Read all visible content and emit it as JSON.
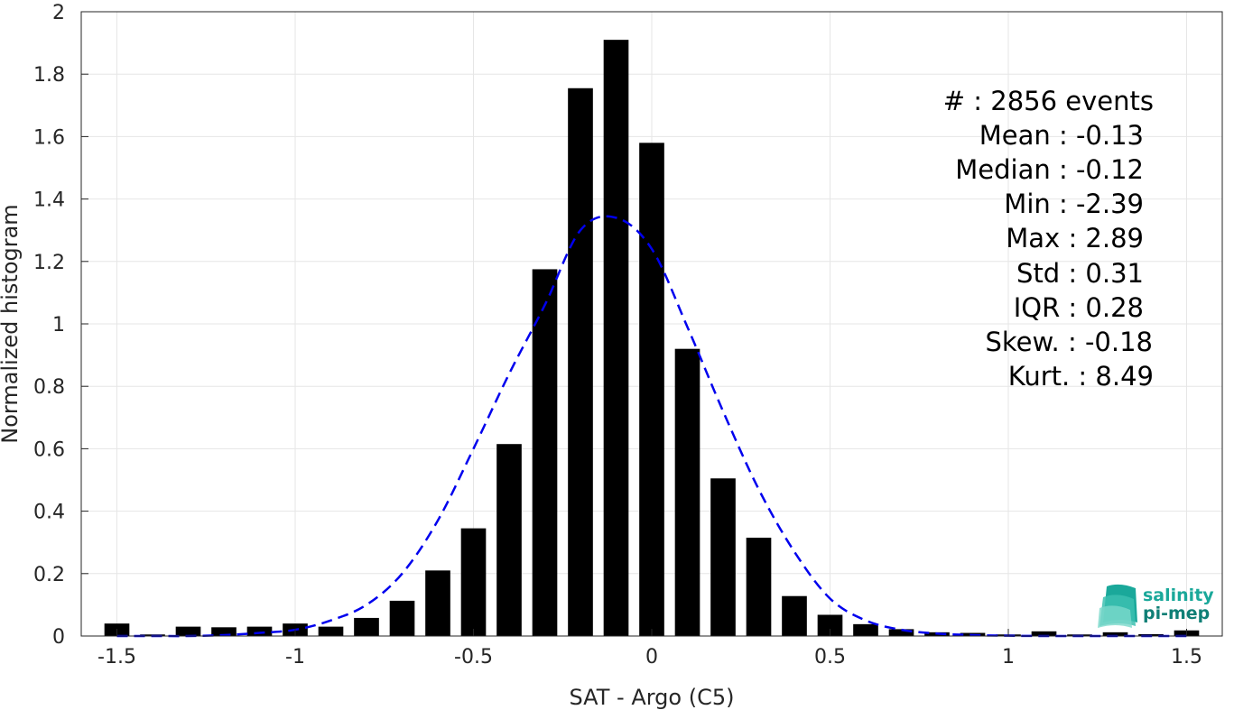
{
  "chart_data": {
    "type": "bar",
    "xlabel": "SAT - Argo (C5)",
    "ylabel": "Normalized histogram",
    "xlim": [
      -1.6,
      1.6
    ],
    "ylim": [
      0,
      2
    ],
    "xticks": [
      -1.5,
      -1,
      -0.5,
      0,
      0.5,
      1,
      1.5
    ],
    "xtick_labels": [
      "-1.5",
      "-1",
      "-0.5",
      "0",
      "0.5",
      "1",
      "1.5"
    ],
    "yticks": [
      0,
      0.2,
      0.4,
      0.6,
      0.8,
      1,
      1.2,
      1.4,
      1.6,
      1.8,
      2
    ],
    "ytick_labels": [
      "0",
      "0.2",
      "0.4",
      "0.6",
      "0.8",
      "1",
      "1.2",
      "1.4",
      "1.6",
      "1.8",
      "2"
    ],
    "grid": true,
    "bar_width": 0.07,
    "bar_color": "#000000",
    "bins": [
      -1.5,
      -1.4,
      -1.3,
      -1.2,
      -1.1,
      -1.0,
      -0.9,
      -0.8,
      -0.7,
      -0.6,
      -0.5,
      -0.4,
      -0.3,
      -0.2,
      -0.1,
      0.0,
      0.1,
      0.2,
      0.3,
      0.4,
      0.5,
      0.6,
      0.7,
      0.8,
      0.9,
      1.0,
      1.1,
      1.2,
      1.3,
      1.4,
      1.5
    ],
    "values": [
      0.04,
      0.005,
      0.03,
      0.028,
      0.03,
      0.04,
      0.03,
      0.058,
      0.113,
      0.21,
      0.345,
      0.615,
      1.175,
      1.755,
      1.91,
      1.58,
      0.92,
      0.505,
      0.315,
      0.128,
      0.068,
      0.038,
      0.022,
      0.012,
      0.01,
      0.005,
      0.015,
      0.005,
      0.012,
      0.006,
      0.018
    ],
    "fit_curve": {
      "style": "dashed",
      "color": "#0000ee",
      "x": [
        -1.5,
        -1.4,
        -1.3,
        -1.2,
        -1.1,
        -1.0,
        -0.9,
        -0.8,
        -0.7,
        -0.6,
        -0.5,
        -0.4,
        -0.3,
        -0.2,
        -0.1,
        0.0,
        0.1,
        0.2,
        0.3,
        0.4,
        0.5,
        0.6,
        0.7,
        0.8,
        0.9,
        1.0,
        1.1,
        1.2,
        1.3,
        1.4,
        1.5
      ],
      "y": [
        0.0,
        0.0,
        0.0,
        0.003,
        0.01,
        0.02,
        0.05,
        0.1,
        0.2,
        0.37,
        0.6,
        0.84,
        1.06,
        1.3,
        1.34,
        1.24,
        0.99,
        0.72,
        0.47,
        0.27,
        0.12,
        0.05,
        0.02,
        0.008,
        0.003,
        0.001,
        0.0,
        0.0,
        0.0,
        0.0,
        0.0
      ]
    },
    "annotations": [
      "#  : 2856 events",
      "Mean : -0.13",
      "Median : -0.12",
      "Min : -2.39",
      "Max : 2.89",
      "Std : 0.31",
      "IQR : 0.28",
      "Skew. : -0.18",
      "Kurt. : 8.49"
    ]
  },
  "logo": {
    "line1": "salinity",
    "line2": "pi-mep",
    "color1": "#1aa89a",
    "color2": "#0f7f76"
  }
}
